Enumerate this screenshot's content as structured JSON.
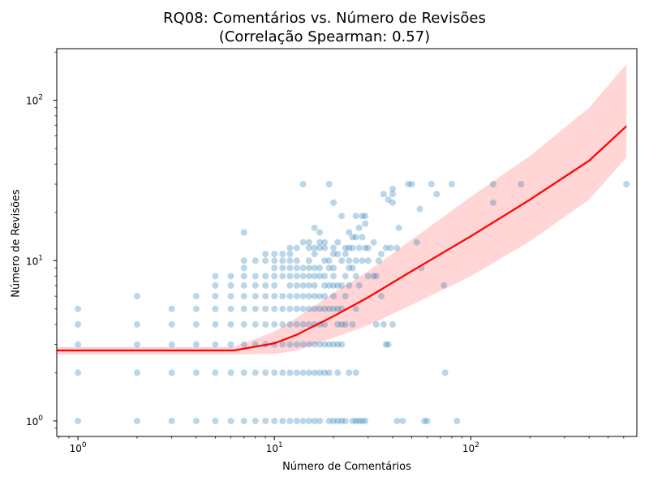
{
  "chart_data": {
    "type": "scatter",
    "title": "RQ08: Comentários vs. Número de Revisões",
    "subtitle": "(Correlação Spearman: 0.57)",
    "xlabel": "Número de Comentários",
    "ylabel": "Número de Revisões",
    "xscale": "log",
    "yscale": "log",
    "xlim": [
      0.78,
      700
    ],
    "ylim": [
      0.8,
      210
    ],
    "grid": false,
    "colors": {
      "points": "#1f77b4",
      "fit_line": "#ff0000",
      "band": "#ffb3b3"
    },
    "x_ticks": [
      {
        "value": 1,
        "base": "10",
        "exp": "0"
      },
      {
        "value": 10,
        "base": "10",
        "exp": "1"
      },
      {
        "value": 100,
        "base": "10",
        "exp": "2"
      }
    ],
    "y_ticks": [
      {
        "value": 1,
        "base": "10",
        "exp": "0"
      },
      {
        "value": 10,
        "base": "10",
        "exp": "1"
      },
      {
        "value": 100,
        "base": "10",
        "exp": "2"
      }
    ],
    "points": [
      [
        1,
        1
      ],
      [
        1,
        2
      ],
      [
        1,
        3
      ],
      [
        1,
        4
      ],
      [
        1,
        5
      ],
      [
        2,
        1
      ],
      [
        2,
        2
      ],
      [
        2,
        3
      ],
      [
        2,
        4
      ],
      [
        2,
        6
      ],
      [
        3,
        1
      ],
      [
        3,
        2
      ],
      [
        3,
        3
      ],
      [
        3,
        4
      ],
      [
        3,
        5
      ],
      [
        4,
        1
      ],
      [
        4,
        2
      ],
      [
        4,
        3
      ],
      [
        4,
        4
      ],
      [
        4,
        5
      ],
      [
        4,
        6
      ],
      [
        5,
        1
      ],
      [
        5,
        2
      ],
      [
        5,
        3
      ],
      [
        5,
        4
      ],
      [
        5,
        5
      ],
      [
        5,
        6
      ],
      [
        5,
        7
      ],
      [
        5,
        8
      ],
      [
        6,
        1
      ],
      [
        6,
        2
      ],
      [
        6,
        3
      ],
      [
        6,
        4
      ],
      [
        6,
        5
      ],
      [
        6,
        6
      ],
      [
        6,
        7
      ],
      [
        6,
        8
      ],
      [
        7,
        1
      ],
      [
        7,
        2
      ],
      [
        7,
        3
      ],
      [
        7,
        4
      ],
      [
        7,
        5
      ],
      [
        7,
        6
      ],
      [
        7,
        7
      ],
      [
        7,
        8
      ],
      [
        7,
        9
      ],
      [
        7,
        10
      ],
      [
        7,
        15
      ],
      [
        8,
        1
      ],
      [
        8,
        2
      ],
      [
        8,
        3
      ],
      [
        8,
        4
      ],
      [
        8,
        5
      ],
      [
        8,
        6
      ],
      [
        8,
        7
      ],
      [
        8,
        8
      ],
      [
        8,
        10
      ],
      [
        9,
        1
      ],
      [
        9,
        2
      ],
      [
        9,
        3
      ],
      [
        9,
        4
      ],
      [
        9,
        5
      ],
      [
        9,
        6
      ],
      [
        9,
        7
      ],
      [
        9,
        8
      ],
      [
        9,
        10
      ],
      [
        9,
        11
      ],
      [
        10,
        1
      ],
      [
        10,
        2
      ],
      [
        10,
        3
      ],
      [
        10,
        4
      ],
      [
        10,
        5
      ],
      [
        10,
        6
      ],
      [
        10,
        7
      ],
      [
        10,
        8
      ],
      [
        10,
        9
      ],
      [
        10,
        10
      ],
      [
        10,
        11
      ],
      [
        11,
        1
      ],
      [
        11,
        2
      ],
      [
        11,
        3
      ],
      [
        11,
        4
      ],
      [
        11,
        5
      ],
      [
        11,
        6
      ],
      [
        11,
        8
      ],
      [
        11,
        9
      ],
      [
        11,
        10
      ],
      [
        11,
        11
      ],
      [
        12,
        1
      ],
      [
        12,
        2
      ],
      [
        12,
        3
      ],
      [
        12,
        4
      ],
      [
        12,
        5
      ],
      [
        12,
        6
      ],
      [
        12,
        7
      ],
      [
        12,
        8
      ],
      [
        12,
        9
      ],
      [
        12,
        10
      ],
      [
        12,
        11
      ],
      [
        12,
        12
      ],
      [
        13,
        1
      ],
      [
        13,
        2
      ],
      [
        13,
        3
      ],
      [
        13,
        4
      ],
      [
        13,
        5
      ],
      [
        13,
        6
      ],
      [
        13,
        7
      ],
      [
        13,
        8
      ],
      [
        13,
        9
      ],
      [
        13,
        10
      ],
      [
        13,
        12
      ],
      [
        14,
        1
      ],
      [
        14,
        2
      ],
      [
        14,
        3
      ],
      [
        14,
        4
      ],
      [
        14,
        5
      ],
      [
        14,
        6
      ],
      [
        14,
        7
      ],
      [
        14,
        8
      ],
      [
        14,
        9
      ],
      [
        14,
        13
      ],
      [
        14,
        30
      ],
      [
        15,
        1
      ],
      [
        15,
        2
      ],
      [
        15,
        3
      ],
      [
        15,
        4
      ],
      [
        15,
        5
      ],
      [
        15,
        6
      ],
      [
        15,
        7
      ],
      [
        15,
        8
      ],
      [
        15,
        9
      ],
      [
        15,
        10
      ],
      [
        15,
        12
      ],
      [
        15,
        13
      ],
      [
        16,
        1
      ],
      [
        16,
        2
      ],
      [
        16,
        3
      ],
      [
        16,
        4
      ],
      [
        16,
        5
      ],
      [
        16,
        6
      ],
      [
        16,
        7
      ],
      [
        16,
        8
      ],
      [
        16,
        9
      ],
      [
        16,
        11
      ],
      [
        16,
        12
      ],
      [
        16,
        16
      ],
      [
        17,
        1
      ],
      [
        17,
        2
      ],
      [
        17,
        3
      ],
      [
        17,
        4
      ],
      [
        17,
        5
      ],
      [
        17,
        6
      ],
      [
        17,
        8
      ],
      [
        17,
        9
      ],
      [
        17,
        12
      ],
      [
        17,
        13
      ],
      [
        17,
        15
      ],
      [
        18,
        2
      ],
      [
        18,
        3
      ],
      [
        18,
        4
      ],
      [
        18,
        5
      ],
      [
        18,
        6
      ],
      [
        18,
        7
      ],
      [
        18,
        8
      ],
      [
        18,
        10
      ],
      [
        18,
        12
      ],
      [
        18,
        13
      ],
      [
        19,
        1
      ],
      [
        19,
        2
      ],
      [
        19,
        3
      ],
      [
        19,
        5
      ],
      [
        19,
        7
      ],
      [
        19,
        9
      ],
      [
        19,
        10
      ],
      [
        19,
        30
      ],
      [
        20,
        1
      ],
      [
        20,
        3
      ],
      [
        20,
        5
      ],
      [
        20,
        6
      ],
      [
        20,
        7
      ],
      [
        20,
        8
      ],
      [
        20,
        9
      ],
      [
        20,
        11
      ],
      [
        20,
        12
      ],
      [
        20,
        23
      ],
      [
        21,
        1
      ],
      [
        21,
        2
      ],
      [
        21,
        3
      ],
      [
        21,
        4
      ],
      [
        21,
        5
      ],
      [
        21,
        7
      ],
      [
        21,
        11
      ],
      [
        21,
        13
      ],
      [
        22,
        1
      ],
      [
        22,
        3
      ],
      [
        22,
        4
      ],
      [
        22,
        5
      ],
      [
        22,
        7
      ],
      [
        22,
        10
      ],
      [
        22,
        19
      ],
      [
        23,
        1
      ],
      [
        23,
        4
      ],
      [
        23,
        6
      ],
      [
        23,
        8
      ],
      [
        23,
        11
      ],
      [
        23,
        12
      ],
      [
        24,
        2
      ],
      [
        24,
        7
      ],
      [
        24,
        9
      ],
      [
        24,
        10
      ],
      [
        24,
        12
      ],
      [
        24,
        15
      ],
      [
        25,
        1
      ],
      [
        25,
        4
      ],
      [
        25,
        9
      ],
      [
        25,
        12
      ],
      [
        25,
        14
      ],
      [
        26,
        1
      ],
      [
        26,
        2
      ],
      [
        26,
        5
      ],
      [
        26,
        8
      ],
      [
        26,
        10
      ],
      [
        26,
        14
      ],
      [
        26,
        19
      ],
      [
        27,
        1
      ],
      [
        27,
        7
      ],
      [
        27,
        12
      ],
      [
        27,
        16
      ],
      [
        28,
        1
      ],
      [
        28,
        10
      ],
      [
        28,
        14
      ],
      [
        28,
        19
      ],
      [
        29,
        1
      ],
      [
        29,
        12
      ],
      [
        29,
        17
      ],
      [
        29,
        19
      ],
      [
        30,
        8
      ],
      [
        30,
        10
      ],
      [
        30,
        12
      ],
      [
        32,
        8
      ],
      [
        32,
        13
      ],
      [
        33,
        4
      ],
      [
        33,
        8
      ],
      [
        34,
        10
      ],
      [
        35,
        6
      ],
      [
        35,
        11
      ],
      [
        36,
        4
      ],
      [
        36,
        26
      ],
      [
        37,
        3
      ],
      [
        37,
        12
      ],
      [
        38,
        3
      ],
      [
        38,
        24
      ],
      [
        39,
        12
      ],
      [
        40,
        4
      ],
      [
        40,
        23
      ],
      [
        40,
        26
      ],
      [
        40,
        28
      ],
      [
        42,
        1
      ],
      [
        42,
        12
      ],
      [
        43,
        16
      ],
      [
        45,
        1
      ],
      [
        48,
        30
      ],
      [
        50,
        30
      ],
      [
        53,
        13
      ],
      [
        55,
        21
      ],
      [
        56,
        9
      ],
      [
        58,
        1
      ],
      [
        60,
        1
      ],
      [
        63,
        30
      ],
      [
        67,
        26
      ],
      [
        73,
        7
      ],
      [
        74,
        2
      ],
      [
        80,
        30
      ],
      [
        85,
        1
      ],
      [
        130,
        23
      ],
      [
        130,
        30
      ],
      [
        180,
        30
      ],
      [
        620,
        30
      ]
    ],
    "fit_line": [
      [
        0.78,
        2.75
      ],
      [
        6.2,
        2.75
      ],
      [
        10,
        3.05
      ],
      [
        13,
        3.45
      ],
      [
        20,
        4.5
      ],
      [
        30,
        5.9
      ],
      [
        50,
        8.6
      ],
      [
        100,
        14.2
      ],
      [
        200,
        24
      ],
      [
        400,
        42
      ],
      [
        620,
        69
      ]
    ],
    "band_upper": [
      [
        0.78,
        2.9
      ],
      [
        6.2,
        2.9
      ],
      [
        10,
        3.6
      ],
      [
        13,
        4.4
      ],
      [
        20,
        6.3
      ],
      [
        30,
        8.6
      ],
      [
        50,
        13.5
      ],
      [
        100,
        25
      ],
      [
        200,
        45
      ],
      [
        400,
        90
      ],
      [
        620,
        168
      ]
    ],
    "band_lower": [
      [
        0.78,
        2.6
      ],
      [
        6.2,
        2.6
      ],
      [
        10,
        2.62
      ],
      [
        13,
        2.75
      ],
      [
        20,
        3.3
      ],
      [
        30,
        3.95
      ],
      [
        50,
        5.3
      ],
      [
        100,
        8.0
      ],
      [
        200,
        13.2
      ],
      [
        400,
        24
      ],
      [
        620,
        44
      ]
    ]
  }
}
